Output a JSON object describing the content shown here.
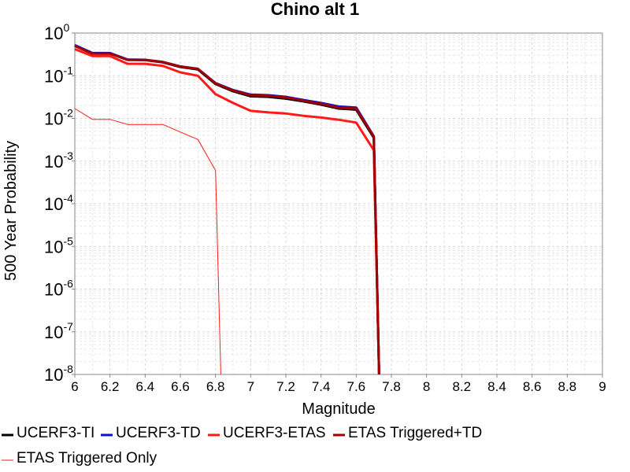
{
  "chart_data": {
    "type": "line",
    "title": "Chino alt 1",
    "xlabel": "Magnitude",
    "ylabel": "500 Year Probability",
    "xlim": [
      6,
      9
    ],
    "ylim": [
      1e-08,
      1
    ],
    "yscale": "log",
    "grid": true,
    "legend_position": "bottom",
    "x_ticks": [
      "6",
      "6.2",
      "6.4",
      "6.6",
      "6.8",
      "7",
      "7.2",
      "7.4",
      "7.6",
      "7.8",
      "8",
      "8.2",
      "8.4",
      "8.6",
      "8.8",
      "9"
    ],
    "y_ticks": [
      {
        "base": "10",
        "exp": "0"
      },
      {
        "base": "10",
        "exp": "-1"
      },
      {
        "base": "10",
        "exp": "-2"
      },
      {
        "base": "10",
        "exp": "-3"
      },
      {
        "base": "10",
        "exp": "-4"
      },
      {
        "base": "10",
        "exp": "-5"
      },
      {
        "base": "10",
        "exp": "-6"
      },
      {
        "base": "10",
        "exp": "-7"
      },
      {
        "base": "10",
        "exp": "-8"
      }
    ],
    "series": [
      {
        "name": "UCERF3-TI",
        "color": "#000000",
        "width": 3,
        "points": [
          [
            6.0,
            0.5
          ],
          [
            6.1,
            0.33
          ],
          [
            6.2,
            0.33
          ],
          [
            6.3,
            0.235
          ],
          [
            6.4,
            0.232
          ],
          [
            6.5,
            0.205
          ],
          [
            6.6,
            0.16
          ],
          [
            6.7,
            0.14
          ],
          [
            6.8,
            0.064
          ],
          [
            6.9,
            0.043
          ],
          [
            7.0,
            0.033
          ],
          [
            7.1,
            0.032
          ],
          [
            7.2,
            0.029
          ],
          [
            7.3,
            0.025
          ],
          [
            7.4,
            0.021
          ],
          [
            7.5,
            0.017
          ],
          [
            7.6,
            0.016
          ],
          [
            7.7,
            0.0035
          ],
          [
            7.73,
            1e-08
          ]
        ]
      },
      {
        "name": "UCERF3-TD",
        "color": "#1010c8",
        "width": 3,
        "points": [
          [
            6.0,
            0.52
          ],
          [
            6.1,
            0.34
          ],
          [
            6.2,
            0.34
          ],
          [
            6.3,
            0.24
          ],
          [
            6.4,
            0.236
          ],
          [
            6.5,
            0.21
          ],
          [
            6.6,
            0.165
          ],
          [
            6.7,
            0.145
          ],
          [
            6.8,
            0.067
          ],
          [
            6.9,
            0.046
          ],
          [
            7.0,
            0.036
          ],
          [
            7.1,
            0.035
          ],
          [
            7.2,
            0.032
          ],
          [
            7.3,
            0.027
          ],
          [
            7.4,
            0.023
          ],
          [
            7.5,
            0.019
          ],
          [
            7.6,
            0.018
          ],
          [
            7.7,
            0.0038
          ],
          [
            7.73,
            1e-08
          ]
        ]
      },
      {
        "name": "UCERF3-ETAS",
        "color": "#ff1a1a",
        "width": 3,
        "points": [
          [
            6.0,
            0.42
          ],
          [
            6.1,
            0.29
          ],
          [
            6.2,
            0.29
          ],
          [
            6.3,
            0.19
          ],
          [
            6.4,
            0.19
          ],
          [
            6.5,
            0.17
          ],
          [
            6.6,
            0.12
          ],
          [
            6.7,
            0.1
          ],
          [
            6.8,
            0.037
          ],
          [
            6.9,
            0.023
          ],
          [
            7.0,
            0.015
          ],
          [
            7.1,
            0.0138
          ],
          [
            7.2,
            0.013
          ],
          [
            7.3,
            0.0115
          ],
          [
            7.4,
            0.0105
          ],
          [
            7.5,
            0.0093
          ],
          [
            7.6,
            0.008
          ],
          [
            7.7,
            0.0018
          ],
          [
            7.73,
            1e-08
          ]
        ]
      },
      {
        "name": "ETAS Triggered+TD",
        "color": "#a00000",
        "width": 3,
        "points": [
          [
            6.0,
            0.5
          ],
          [
            6.1,
            0.33
          ],
          [
            6.2,
            0.33
          ],
          [
            6.3,
            0.235
          ],
          [
            6.4,
            0.235
          ],
          [
            6.5,
            0.21
          ],
          [
            6.6,
            0.165
          ],
          [
            6.7,
            0.145
          ],
          [
            6.8,
            0.066
          ],
          [
            6.9,
            0.045
          ],
          [
            7.0,
            0.035
          ],
          [
            7.1,
            0.034
          ],
          [
            7.2,
            0.031
          ],
          [
            7.3,
            0.026
          ],
          [
            7.4,
            0.022
          ],
          [
            7.5,
            0.018
          ],
          [
            7.6,
            0.017
          ],
          [
            7.7,
            0.0037
          ],
          [
            7.73,
            1e-08
          ]
        ]
      },
      {
        "name": "ETAS Triggered Only",
        "color": "#ff1a1a",
        "width": 1,
        "points": [
          [
            6.0,
            0.017
          ],
          [
            6.1,
            0.0095
          ],
          [
            6.2,
            0.0095
          ],
          [
            6.3,
            0.0072
          ],
          [
            6.4,
            0.0072
          ],
          [
            6.5,
            0.0072
          ],
          [
            6.6,
            0.0048
          ],
          [
            6.7,
            0.0032
          ],
          [
            6.8,
            0.0006
          ],
          [
            6.83,
            1e-08
          ]
        ]
      }
    ]
  }
}
